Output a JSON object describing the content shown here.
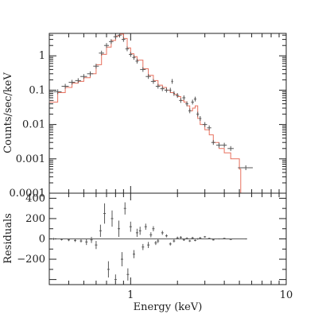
{
  "chart_data": [
    {
      "type": "scatter",
      "panel": "spectrum",
      "xlabel": "",
      "ylabel": "Counts/sec/keV",
      "x_scale": "log",
      "y_scale": "log",
      "xlim": [
        0.3,
        10
      ],
      "ylim": [
        0.0001,
        4.5
      ],
      "grid": false,
      "x_tick_labels": [
        {
          "value": 1,
          "label": "1"
        },
        {
          "value": 10,
          "label": "10"
        }
      ],
      "y_tick_labels": [
        {
          "value": 1,
          "label": "1"
        },
        {
          "value": 0.1,
          "label": "0.1"
        },
        {
          "value": 0.01,
          "label": "0.01"
        },
        {
          "value": 0.001,
          "label": "0.001"
        },
        {
          "value": 0.0001,
          "label": "0.0001"
        }
      ],
      "colors": {
        "data": "#555555",
        "model": "#e8705e",
        "axes": "#222222"
      },
      "series": [
        {
          "style": "data-crosses",
          "x": [
            0.3,
            0.34,
            0.38,
            0.42,
            0.46,
            0.5,
            0.55,
            0.6,
            0.65,
            0.7,
            0.75,
            0.8,
            0.85,
            0.9,
            0.95,
            1.0,
            1.05,
            1.1,
            1.2,
            1.3,
            1.4,
            1.5,
            1.6,
            1.7,
            1.8,
            1.85,
            1.9,
            2.0,
            2.1,
            2.2,
            2.3,
            2.4,
            2.5,
            2.6,
            2.7,
            2.8,
            3.0,
            3.2,
            3.4,
            3.7,
            4.0,
            4.4,
            5.5
          ],
          "y": [
            0.05,
            0.09,
            0.13,
            0.17,
            0.19,
            0.25,
            0.3,
            0.5,
            1.2,
            2.0,
            2.6,
            3.6,
            4.0,
            3.0,
            1.6,
            1.1,
            0.9,
            0.7,
            0.4,
            0.25,
            0.18,
            0.13,
            0.11,
            0.1,
            0.1,
            0.18,
            0.08,
            0.07,
            0.05,
            0.06,
            0.04,
            0.025,
            0.045,
            0.055,
            0.02,
            0.015,
            0.01,
            0.008,
            0.003,
            0.0025,
            0.0025,
            0.002,
            0.00055
          ],
          "xerr": [
            0.02,
            0.02,
            0.02,
            0.02,
            0.02,
            0.025,
            0.025,
            0.025,
            0.025,
            0.025,
            0.025,
            0.025,
            0.025,
            0.025,
            0.025,
            0.025,
            0.025,
            0.025,
            0.05,
            0.05,
            0.05,
            0.05,
            0.05,
            0.05,
            0.025,
            0.025,
            0.025,
            0.05,
            0.05,
            0.05,
            0.05,
            0.05,
            0.05,
            0.05,
            0.05,
            0.05,
            0.1,
            0.1,
            0.1,
            0.15,
            0.15,
            0.2,
            0.6
          ]
        },
        {
          "style": "model-step",
          "x": [
            0.3,
            0.34,
            0.38,
            0.42,
            0.46,
            0.5,
            0.55,
            0.6,
            0.65,
            0.7,
            0.75,
            0.8,
            0.85,
            0.9,
            0.95,
            1.0,
            1.05,
            1.1,
            1.2,
            1.3,
            1.4,
            1.5,
            1.6,
            1.7,
            1.8,
            1.9,
            2.0,
            2.1,
            2.2,
            2.3,
            2.4,
            2.5,
            2.6,
            2.7,
            2.8,
            3.0,
            3.2,
            3.4,
            3.7,
            4.0,
            4.4,
            5.0,
            5.1
          ],
          "y": [
            0.045,
            0.085,
            0.12,
            0.16,
            0.18,
            0.23,
            0.3,
            0.55,
            1.1,
            1.8,
            2.8,
            3.8,
            4.3,
            3.2,
            1.7,
            1.15,
            0.95,
            0.75,
            0.42,
            0.27,
            0.19,
            0.14,
            0.12,
            0.1,
            0.085,
            0.075,
            0.065,
            0.05,
            0.045,
            0.035,
            0.025,
            0.03,
            0.035,
            0.015,
            0.01,
            0.007,
            0.005,
            0.003,
            0.002,
            0.0015,
            0.001,
            0.0005,
            0.0001
          ]
        }
      ]
    },
    {
      "type": "scatter",
      "panel": "residuals",
      "xlabel": "Energy (keV)",
      "ylabel": "Residuals",
      "x_scale": "log",
      "y_scale": "linear",
      "xlim": [
        0.3,
        10
      ],
      "ylim": [
        -450,
        450
      ],
      "grid": false,
      "x_tick_labels": [
        {
          "value": 1,
          "label": "1"
        },
        {
          "value": 10,
          "label": "10"
        }
      ],
      "y_tick_labels": [
        {
          "value": 400,
          "label": "400"
        },
        {
          "value": 200,
          "label": "200"
        },
        {
          "value": 0,
          "label": "0"
        },
        {
          "value": -200,
          "label": "−200"
        }
      ],
      "colors": {
        "data": "#555555",
        "zero_line": "#555555",
        "axes": "#222222"
      },
      "series": [
        {
          "style": "data-crosses",
          "x": [
            0.32,
            0.36,
            0.4,
            0.44,
            0.48,
            0.52,
            0.56,
            0.6,
            0.64,
            0.68,
            0.72,
            0.76,
            0.8,
            0.84,
            0.88,
            0.92,
            0.96,
            1.0,
            1.05,
            1.1,
            1.15,
            1.2,
            1.25,
            1.3,
            1.35,
            1.4,
            1.45,
            1.5,
            1.6,
            1.7,
            1.8,
            1.9,
            2.0,
            2.1,
            2.2,
            2.3,
            2.4,
            2.5,
            2.6,
            2.7,
            2.8,
            3.0,
            3.2,
            3.4,
            3.7,
            4.0,
            4.4,
            5.5
          ],
          "y": [
            0,
            -5,
            -10,
            -15,
            -20,
            -30,
            -10,
            -60,
            80,
            250,
            -300,
            200,
            -400,
            100,
            -200,
            300,
            -350,
            120,
            -150,
            60,
            80,
            -80,
            120,
            -60,
            40,
            100,
            -40,
            -20,
            60,
            30,
            -50,
            -20,
            10,
            15,
            -10,
            5,
            -20,
            10,
            -15,
            0,
            10,
            20,
            5,
            -10,
            0,
            5,
            -5,
            0
          ],
          "yerr": [
            10,
            10,
            12,
            15,
            15,
            30,
            30,
            40,
            60,
            100,
            80,
            80,
            50,
            80,
            70,
            60,
            60,
            50,
            40,
            40,
            40,
            30,
            30,
            30,
            25,
            25,
            20,
            20,
            20,
            15,
            15,
            15,
            12,
            12,
            10,
            10,
            10,
            10,
            8,
            8,
            8,
            8,
            6,
            6,
            5,
            5,
            5,
            5
          ]
        }
      ]
    }
  ]
}
